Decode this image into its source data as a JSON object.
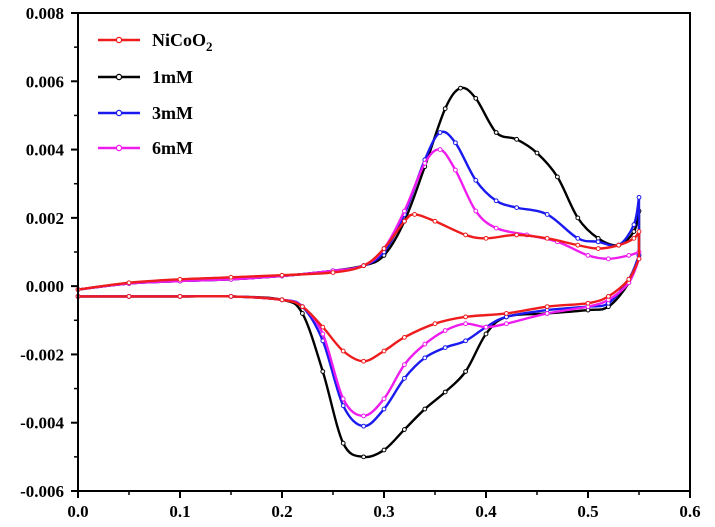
{
  "chart_data": {
    "type": "line",
    "title": "",
    "xlabel": "",
    "ylabel": "",
    "xlim": [
      0.0,
      0.6
    ],
    "ylim": [
      -0.006,
      0.008
    ],
    "x_ticks": [
      "0.0",
      "0.1",
      "0.2",
      "0.3",
      "0.4",
      "0.5",
      "0.6"
    ],
    "y_ticks": [
      "-0.006",
      "-0.004",
      "-0.002",
      "0.000",
      "0.002",
      "0.004",
      "0.006",
      "0.008"
    ],
    "grid": false,
    "legend_position": "top-left",
    "legend": {
      "nicoo2": {
        "base": "NiCoO",
        "sub": "2"
      },
      "mm1": "1mM",
      "mm3": "3mM",
      "mm6": "6mM"
    },
    "series": [
      {
        "key": "nicoo2",
        "color": "#ee1c1c",
        "anodic": [
          [
            0.0,
            -0.0001
          ],
          [
            0.05,
            0.0001
          ],
          [
            0.1,
            0.0002
          ],
          [
            0.15,
            0.00026
          ],
          [
            0.2,
            0.00032
          ],
          [
            0.25,
            0.0004
          ],
          [
            0.28,
            0.0006
          ],
          [
            0.3,
            0.0011
          ],
          [
            0.32,
            0.0019
          ],
          [
            0.33,
            0.0021
          ],
          [
            0.35,
            0.0019
          ],
          [
            0.38,
            0.0015
          ],
          [
            0.4,
            0.0014
          ],
          [
            0.43,
            0.0015
          ],
          [
            0.46,
            0.0014
          ],
          [
            0.49,
            0.0012
          ],
          [
            0.51,
            0.0011
          ],
          [
            0.53,
            0.0012
          ],
          [
            0.545,
            0.0014
          ],
          [
            0.55,
            0.0016
          ]
        ],
        "cathodic": [
          [
            0.55,
            0.0008
          ],
          [
            0.54,
            0.0002
          ],
          [
            0.52,
            -0.0003
          ],
          [
            0.5,
            -0.0005
          ],
          [
            0.46,
            -0.0006
          ],
          [
            0.42,
            -0.0008
          ],
          [
            0.38,
            -0.0009
          ],
          [
            0.35,
            -0.0011
          ],
          [
            0.32,
            -0.0015
          ],
          [
            0.3,
            -0.0019
          ],
          [
            0.28,
            -0.0022
          ],
          [
            0.26,
            -0.0019
          ],
          [
            0.24,
            -0.0012
          ],
          [
            0.22,
            -0.0006
          ],
          [
            0.2,
            -0.0004
          ],
          [
            0.15,
            -0.0003
          ],
          [
            0.1,
            -0.0003
          ],
          [
            0.05,
            -0.0003
          ],
          [
            0.0,
            -0.0003
          ]
        ]
      },
      {
        "key": "mm1",
        "color": "#000000",
        "anodic": [
          [
            0.0,
            -0.0001
          ],
          [
            0.05,
            8e-05
          ],
          [
            0.1,
            0.00015
          ],
          [
            0.15,
            0.0002
          ],
          [
            0.2,
            0.0003
          ],
          [
            0.25,
            0.00045
          ],
          [
            0.28,
            0.0006
          ],
          [
            0.3,
            0.0009
          ],
          [
            0.32,
            0.0019
          ],
          [
            0.34,
            0.0035
          ],
          [
            0.36,
            0.0052
          ],
          [
            0.375,
            0.0058
          ],
          [
            0.39,
            0.0055
          ],
          [
            0.41,
            0.0045
          ],
          [
            0.43,
            0.0043
          ],
          [
            0.45,
            0.0039
          ],
          [
            0.47,
            0.0032
          ],
          [
            0.49,
            0.002
          ],
          [
            0.51,
            0.0014
          ],
          [
            0.53,
            0.0012
          ],
          [
            0.545,
            0.0016
          ],
          [
            0.55,
            0.0022
          ]
        ],
        "cathodic": [
          [
            0.55,
            0.0009
          ],
          [
            0.54,
            0.0001
          ],
          [
            0.52,
            -0.0006
          ],
          [
            0.5,
            -0.0007
          ],
          [
            0.46,
            -0.0008
          ],
          [
            0.42,
            -0.0009
          ],
          [
            0.4,
            -0.0014
          ],
          [
            0.38,
            -0.0025
          ],
          [
            0.36,
            -0.0031
          ],
          [
            0.34,
            -0.0036
          ],
          [
            0.32,
            -0.0042
          ],
          [
            0.3,
            -0.0048
          ],
          [
            0.28,
            -0.005
          ],
          [
            0.26,
            -0.0046
          ],
          [
            0.24,
            -0.0025
          ],
          [
            0.22,
            -0.0008
          ],
          [
            0.2,
            -0.0004
          ],
          [
            0.15,
            -0.0003
          ],
          [
            0.1,
            -0.0003
          ],
          [
            0.05,
            -0.0003
          ],
          [
            0.0,
            -0.0003
          ]
        ]
      },
      {
        "key": "mm3",
        "color": "#1a1aee",
        "anodic": [
          [
            0.0,
            -0.0001
          ],
          [
            0.05,
            8e-05
          ],
          [
            0.1,
            0.00015
          ],
          [
            0.15,
            0.0002
          ],
          [
            0.2,
            0.0003
          ],
          [
            0.25,
            0.00045
          ],
          [
            0.28,
            0.0006
          ],
          [
            0.3,
            0.001
          ],
          [
            0.32,
            0.0021
          ],
          [
            0.34,
            0.0037
          ],
          [
            0.355,
            0.0045
          ],
          [
            0.37,
            0.0042
          ],
          [
            0.39,
            0.0031
          ],
          [
            0.41,
            0.0025
          ],
          [
            0.43,
            0.0023
          ],
          [
            0.46,
            0.0021
          ],
          [
            0.49,
            0.0014
          ],
          [
            0.51,
            0.0013
          ],
          [
            0.53,
            0.0012
          ],
          [
            0.545,
            0.0018
          ],
          [
            0.55,
            0.0026
          ]
        ],
        "cathodic": [
          [
            0.55,
            0.0009
          ],
          [
            0.54,
            0.0002
          ],
          [
            0.52,
            -0.0005
          ],
          [
            0.5,
            -0.0006
          ],
          [
            0.46,
            -0.0007
          ],
          [
            0.42,
            -0.0009
          ],
          [
            0.4,
            -0.0012
          ],
          [
            0.38,
            -0.0016
          ],
          [
            0.36,
            -0.0018
          ],
          [
            0.34,
            -0.0021
          ],
          [
            0.32,
            -0.0027
          ],
          [
            0.3,
            -0.0036
          ],
          [
            0.28,
            -0.0041
          ],
          [
            0.26,
            -0.0035
          ],
          [
            0.24,
            -0.0016
          ],
          [
            0.22,
            -0.0006
          ],
          [
            0.2,
            -0.0004
          ],
          [
            0.15,
            -0.0003
          ],
          [
            0.1,
            -0.0003
          ],
          [
            0.05,
            -0.0003
          ],
          [
            0.0,
            -0.0003
          ]
        ]
      },
      {
        "key": "mm6",
        "color": "#ee1cee",
        "anodic": [
          [
            0.0,
            -0.0001
          ],
          [
            0.05,
            8e-05
          ],
          [
            0.1,
            0.00015
          ],
          [
            0.15,
            0.0002
          ],
          [
            0.2,
            0.0003
          ],
          [
            0.25,
            0.00045
          ],
          [
            0.28,
            0.0006
          ],
          [
            0.3,
            0.0011
          ],
          [
            0.32,
            0.0022
          ],
          [
            0.34,
            0.0036
          ],
          [
            0.355,
            0.004
          ],
          [
            0.37,
            0.0034
          ],
          [
            0.39,
            0.0022
          ],
          [
            0.41,
            0.0017
          ],
          [
            0.44,
            0.0015
          ],
          [
            0.47,
            0.0013
          ],
          [
            0.5,
            0.0009
          ],
          [
            0.52,
            0.0008
          ],
          [
            0.54,
            0.0009
          ],
          [
            0.55,
            0.001
          ]
        ],
        "cathodic": [
          [
            0.55,
            0.0008
          ],
          [
            0.54,
            0.0001
          ],
          [
            0.52,
            -0.0004
          ],
          [
            0.5,
            -0.0006
          ],
          [
            0.46,
            -0.0008
          ],
          [
            0.42,
            -0.0011
          ],
          [
            0.4,
            -0.0012
          ],
          [
            0.38,
            -0.0011
          ],
          [
            0.36,
            -0.0013
          ],
          [
            0.34,
            -0.0017
          ],
          [
            0.32,
            -0.0023
          ],
          [
            0.3,
            -0.0033
          ],
          [
            0.28,
            -0.0038
          ],
          [
            0.26,
            -0.0033
          ],
          [
            0.24,
            -0.0014
          ],
          [
            0.22,
            -0.0006
          ],
          [
            0.2,
            -0.0004
          ],
          [
            0.15,
            -0.0003
          ],
          [
            0.1,
            -0.0003
          ],
          [
            0.05,
            -0.0003
          ],
          [
            0.0,
            -0.0003
          ]
        ]
      }
    ]
  }
}
